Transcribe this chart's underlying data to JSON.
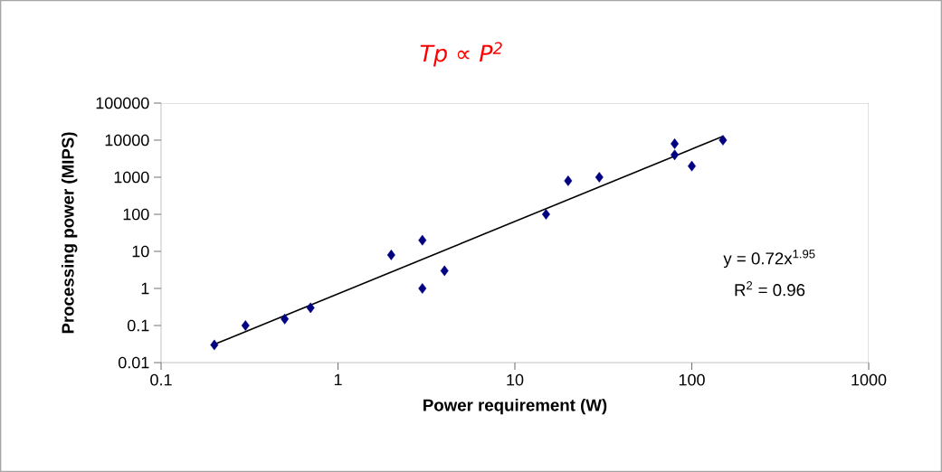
{
  "chart_data": {
    "type": "scatter",
    "title": "Tp ∝ P$^{2}$",
    "xlabel": "Power requirement (W)",
    "ylabel": "Processing power (MIPS)",
    "log": "xy",
    "grid": false,
    "marker": "diamond",
    "xlim": [
      0.1,
      1000
    ],
    "ylim": [
      0.01,
      100000
    ],
    "xticks": [
      0.1,
      1,
      10,
      100,
      1000
    ],
    "yticks": [
      0.01,
      0.1,
      1,
      10,
      100,
      1000,
      10000,
      100000
    ],
    "series": [
      {
        "color": "#000080",
        "x": [
          0.2,
          0.3,
          0.5,
          0.7,
          2,
          3,
          3,
          4,
          15,
          20,
          30,
          80,
          80,
          100,
          150
        ],
        "values": [
          0.03,
          0.1,
          0.15,
          0.3,
          8,
          20,
          1,
          3,
          100,
          800,
          1000,
          8000,
          4000,
          2000,
          10000
        ]
      },
      {
        "type": "line",
        "color": "#000000",
        "marker": "none",
        "x": [
          0.2,
          150
        ],
        "values": [
          0.031,
          12700
        ]
      }
    ],
    "annotations": [
      "y = 0.72x$^{1.95}$",
      "R$^{2}$ = 0.96"
    ]
  }
}
